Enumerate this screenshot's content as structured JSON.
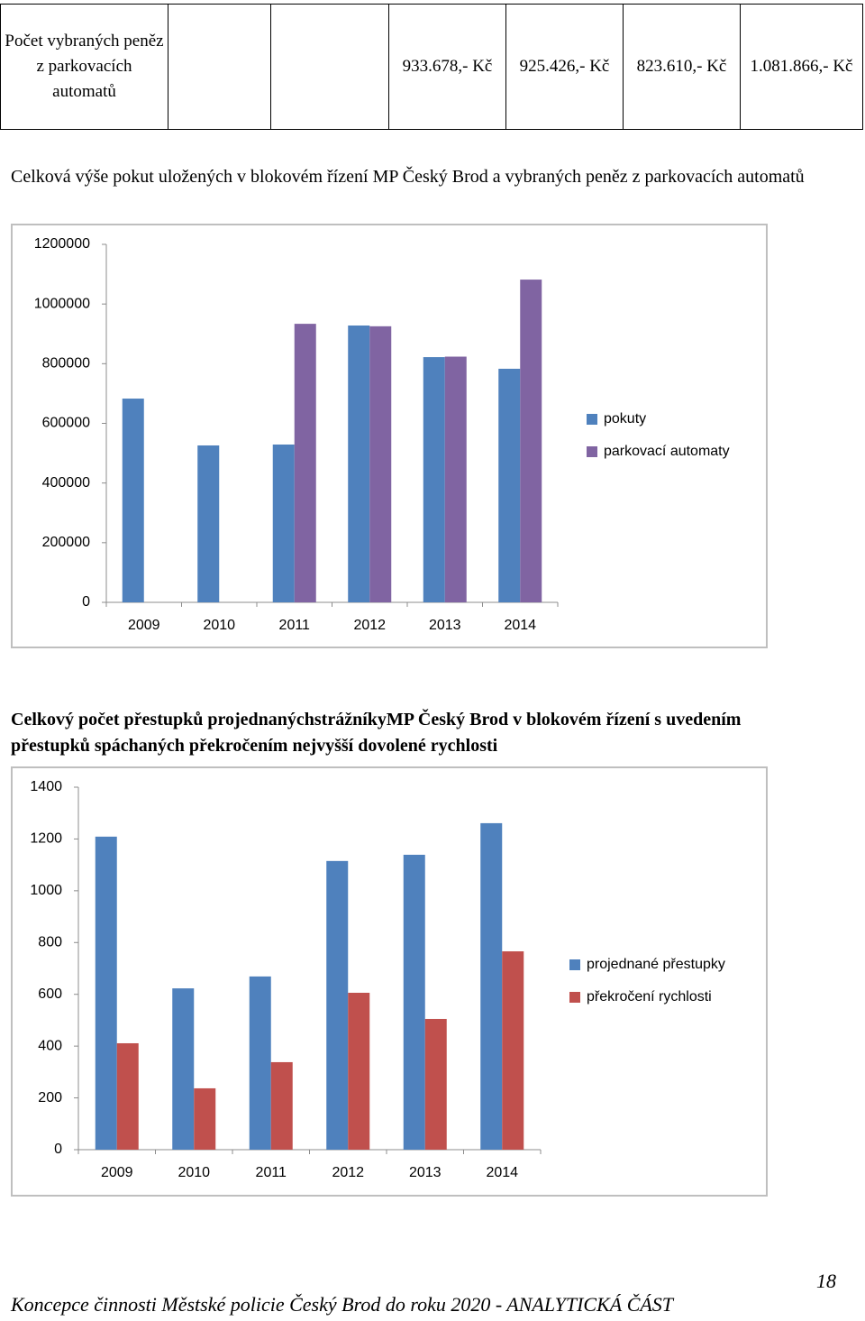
{
  "table": {
    "row_label": "Počet vybraných peněz z parkovacích automatů",
    "values": [
      "933.678,- Kč",
      "925.426,- Kč",
      "823.610,- Kč",
      "1.081.866,- Kč"
    ]
  },
  "chart_data": [
    {
      "type": "bar",
      "title": "Celková výše pokut uložených v blokovém řízení  MP Český Brod a vybraných peněz z parkovacích automatů",
      "categories": [
        "2009",
        "2010",
        "2011",
        "2012",
        "2013",
        "2014"
      ],
      "series": [
        {
          "name": "pokuty",
          "color": "#4f81bd",
          "values": [
            683000,
            526000,
            529000,
            928000,
            822000,
            783000
          ]
        },
        {
          "name": "parkovací automaty",
          "color": "#8064a2",
          "values": [
            null,
            null,
            933678,
            925426,
            823610,
            1081866
          ]
        }
      ],
      "ylim": [
        0,
        1200000
      ],
      "yticks": [
        0,
        200000,
        400000,
        600000,
        800000,
        1000000,
        1200000
      ],
      "grid": false,
      "legend": "right"
    },
    {
      "type": "bar",
      "title": "Celkový počet přestupků projednanýchstrážníkyMP Český Brod v blokovém řízení s uvedením přestupků spáchaných překročením nejvyšší dovolené rychlosti",
      "categories": [
        "2009",
        "2010",
        "2011",
        "2012",
        "2013",
        "2014"
      ],
      "series": [
        {
          "name": "projednané přestupky",
          "color": "#4f81bd",
          "values": [
            1209,
            623,
            669,
            1115,
            1139,
            1261
          ]
        },
        {
          "name": "překročení rychlosti",
          "color": "#c0504d",
          "values": [
            411,
            237,
            338,
            606,
            505,
            766
          ]
        }
      ],
      "ylim": [
        0,
        1400
      ],
      "yticks": [
        0,
        200,
        400,
        600,
        800,
        1000,
        1200,
        1400
      ],
      "grid": false,
      "legend": "right"
    }
  ],
  "footer": {
    "text": "Koncepce činnosti Městské policie Český Brod do roku 2020 - ANALYTICKÁ ČÁST",
    "page": "18"
  }
}
